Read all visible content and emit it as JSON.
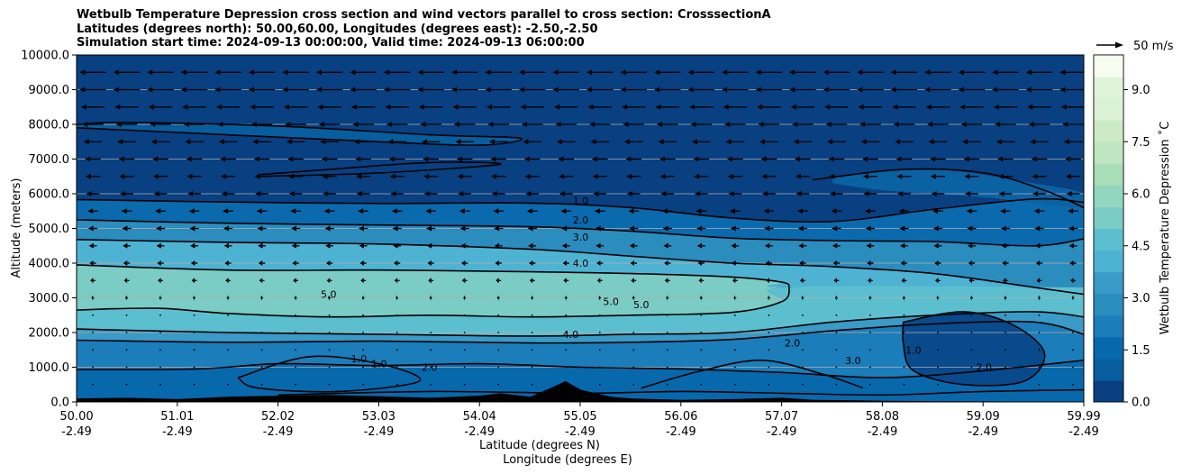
{
  "title_lines": [
    "Wetbulb Temperature Depression cross section and wind vectors parallel to cross section: CrosssectionA",
    "Latitudes (degrees north): 50.00,60.00, Longitudes (degrees east): -2.50,-2.50",
    "Simulation start time: 2024-09-13 00:00:00, Valid time: 2024-09-13 06:00:00"
  ],
  "quiver_key": "50 m/s",
  "colors": {
    "depression_scale": [
      "#084081",
      "#085d9e",
      "#0868ac",
      "#1b7db9",
      "#2b8cbe",
      "#3a9ac8",
      "#4eb3d3",
      "#5cbfcf",
      "#7bccc4",
      "#93d6bf",
      "#a8ddb5",
      "#bee6c0",
      "#ccebc5",
      "#dbf1d6",
      "#e0f3db",
      "#f7fcf0"
    ],
    "terrain": "#000000",
    "contour": "#000000"
  },
  "chart_data": {
    "type": "filled-contour cross section with wind vectors",
    "xlabel_lines": [
      "Latitude (degrees N)",
      "Longitude (degrees E)"
    ],
    "ylabel": "Altitude (meters)",
    "ylim": [
      0,
      10000
    ],
    "y_ticks": [
      "0.0",
      "1000.0",
      "2000.0",
      "3000.0",
      "4000.0",
      "5000.0",
      "6000.0",
      "7000.0",
      "8000.0",
      "9000.0",
      "10000.0"
    ],
    "y_tick_values": [
      0,
      1000,
      2000,
      3000,
      4000,
      5000,
      6000,
      7000,
      8000,
      9000,
      10000
    ],
    "x_ticks": [
      {
        "lat": "50.00",
        "lon": "-2.49"
      },
      {
        "lat": "51.01",
        "lon": "-2.49"
      },
      {
        "lat": "52.02",
        "lon": "-2.49"
      },
      {
        "lat": "53.03",
        "lon": "-2.49"
      },
      {
        "lat": "54.04",
        "lon": "-2.49"
      },
      {
        "lat": "55.05",
        "lon": "-2.49"
      },
      {
        "lat": "56.06",
        "lon": "-2.49"
      },
      {
        "lat": "57.07",
        "lon": "-2.49"
      },
      {
        "lat": "58.08",
        "lon": "-2.49"
      },
      {
        "lat": "59.09",
        "lon": "-2.49"
      },
      {
        "lat": "59.99",
        "lon": "-2.49"
      }
    ],
    "grid": "horizontal lines",
    "colorbar": {
      "label": "Wetbulb Temperature Depression $^\\circ$C",
      "label_display": "Wetbulb Temperature Depression ˚C",
      "range": [
        0,
        10
      ],
      "ticks": [
        "0.0",
        "1.5",
        "3.0",
        "4.5",
        "6.0",
        "7.5",
        "9.0"
      ],
      "tick_values": [
        0,
        1.5,
        3.0,
        4.5,
        6.0,
        7.5,
        9.0
      ]
    },
    "contour_lines": [
      {
        "level": "1.0",
        "points": [
          [
            50.0,
            5830
          ],
          [
            51.5,
            5760
          ],
          [
            53.0,
            5720
          ],
          [
            54.5,
            5730
          ],
          [
            55.5,
            5600
          ],
          [
            56.5,
            5300
          ],
          [
            57.5,
            5200
          ],
          [
            58.5,
            5550
          ],
          [
            59.5,
            5850
          ],
          [
            59.99,
            5750
          ]
        ]
      },
      {
        "level": "2.0",
        "points": [
          [
            50.0,
            5250
          ],
          [
            51.5,
            5150
          ],
          [
            53.0,
            5100
          ],
          [
            54.5,
            5050
          ],
          [
            55.5,
            4920
          ],
          [
            56.5,
            4720
          ],
          [
            57.5,
            4650
          ],
          [
            58.5,
            4620
          ],
          [
            59.5,
            4500
          ],
          [
            59.99,
            4700
          ]
        ]
      },
      {
        "level": "3.0",
        "points": [
          [
            50.0,
            4680
          ],
          [
            51.5,
            4600
          ],
          [
            53.0,
            4550
          ],
          [
            54.5,
            4400
          ],
          [
            55.5,
            4200
          ],
          [
            56.5,
            4000
          ],
          [
            57.5,
            3900
          ],
          [
            58.5,
            3700
          ],
          [
            59.5,
            3300
          ],
          [
            59.99,
            3100
          ]
        ]
      },
      {
        "level": "4.0",
        "points": [
          [
            50.0,
            3950
          ],
          [
            51.5,
            3800
          ],
          [
            53.0,
            3800
          ],
          [
            54.5,
            3750
          ],
          [
            55.5,
            3700
          ],
          [
            56.5,
            3600
          ],
          [
            57.0,
            3450
          ],
          [
            57.07,
            3300
          ]
        ]
      },
      {
        "level": "5.0",
        "points": [
          [
            50.0,
            2650
          ],
          [
            50.8,
            2700
          ],
          [
            51.5,
            2550
          ],
          [
            52.5,
            2450
          ],
          [
            53.5,
            2500
          ],
          [
            54.5,
            2450
          ],
          [
            55.5,
            2500
          ],
          [
            56.5,
            2580
          ],
          [
            57.0,
            2900
          ],
          [
            57.07,
            3300
          ]
        ]
      },
      {
        "level": "4.0",
        "points": [
          [
            50.0,
            2100
          ],
          [
            51.5,
            2000
          ],
          [
            53.0,
            1950
          ],
          [
            54.5,
            1900
          ],
          [
            55.5,
            1950
          ],
          [
            56.5,
            2000
          ],
          [
            57.5,
            2300
          ],
          [
            58.5,
            2500
          ],
          [
            59.5,
            2600
          ],
          [
            59.99,
            2450
          ]
        ]
      },
      {
        "level": "3.0",
        "points": [
          [
            50.0,
            1780
          ],
          [
            51.5,
            1720
          ],
          [
            53.0,
            1750
          ],
          [
            54.5,
            1700
          ],
          [
            55.5,
            1720
          ],
          [
            56.5,
            1800
          ],
          [
            57.5,
            2050
          ],
          [
            58.5,
            2250
          ],
          [
            59.5,
            2300
          ],
          [
            59.99,
            1950
          ]
        ]
      },
      {
        "level": "1.0",
        "points": [
          [
            50.0,
            930
          ],
          [
            51.2,
            950
          ],
          [
            52.0,
            1100
          ],
          [
            53.0,
            1050
          ],
          [
            54.0,
            1100
          ],
          [
            55.0,
            1000
          ],
          [
            56.0,
            950
          ],
          [
            57.0,
            850
          ],
          [
            58.0,
            700
          ],
          [
            59.0,
            900
          ],
          [
            59.99,
            1200
          ]
        ]
      }
    ],
    "contour_labels": [
      "1.0",
      "2.0",
      "3.0",
      "4.0",
      "5.0",
      "5.0",
      "5.0",
      "4.0",
      "2.0",
      "1.0",
      "2.0",
      "3.0",
      "2.0",
      "1.0",
      "1.0"
    ],
    "terrain_profile": [
      [
        50.0,
        100
      ],
      [
        50.5,
        120
      ],
      [
        51.0,
        80
      ],
      [
        51.5,
        150
      ],
      [
        52.0,
        180
      ],
      [
        52.5,
        200
      ],
      [
        53.0,
        160
      ],
      [
        53.5,
        120
      ],
      [
        54.0,
        180
      ],
      [
        54.2,
        250
      ],
      [
        54.5,
        150
      ],
      [
        54.7,
        400
      ],
      [
        54.85,
        600
      ],
      [
        55.0,
        350
      ],
      [
        55.3,
        150
      ],
      [
        55.5,
        100
      ],
      [
        56.0,
        60
      ],
      [
        56.5,
        80
      ],
      [
        57.0,
        120
      ],
      [
        57.3,
        60
      ],
      [
        57.7,
        50
      ],
      [
        58.0,
        30
      ],
      [
        58.5,
        20
      ],
      [
        59.0,
        15
      ],
      [
        59.5,
        10
      ],
      [
        59.99,
        10
      ]
    ],
    "wind_vectors": {
      "direction": "southward (toward 50.00 N), parallel to cross section",
      "key_speed_ms": 50,
      "levels": [
        {
          "z": 9500,
          "speed": 20
        },
        {
          "z": 9000,
          "speed": 20
        },
        {
          "z": 8500,
          "speed": 18
        },
        {
          "z": 8000,
          "speed": 16
        },
        {
          "z": 7500,
          "speed": 14
        },
        {
          "z": 7000,
          "speed": 12
        },
        {
          "z": 6500,
          "speed": 11
        },
        {
          "z": 6000,
          "speed": 10
        },
        {
          "z": 5500,
          "speed": 8
        },
        {
          "z": 5000,
          "speed": 7
        },
        {
          "z": 4500,
          "speed": 6
        },
        {
          "z": 4000,
          "speed": 5
        },
        {
          "z": 3500,
          "speed": 4
        },
        {
          "z": 3000,
          "speed": 2
        },
        {
          "z": 2500,
          "speed": 1
        },
        {
          "z": 2000,
          "speed": 1
        },
        {
          "z": 1500,
          "speed": 1
        },
        {
          "z": 1000,
          "speed": 0.5
        },
        {
          "z": 500,
          "speed": 0.5
        }
      ]
    }
  }
}
